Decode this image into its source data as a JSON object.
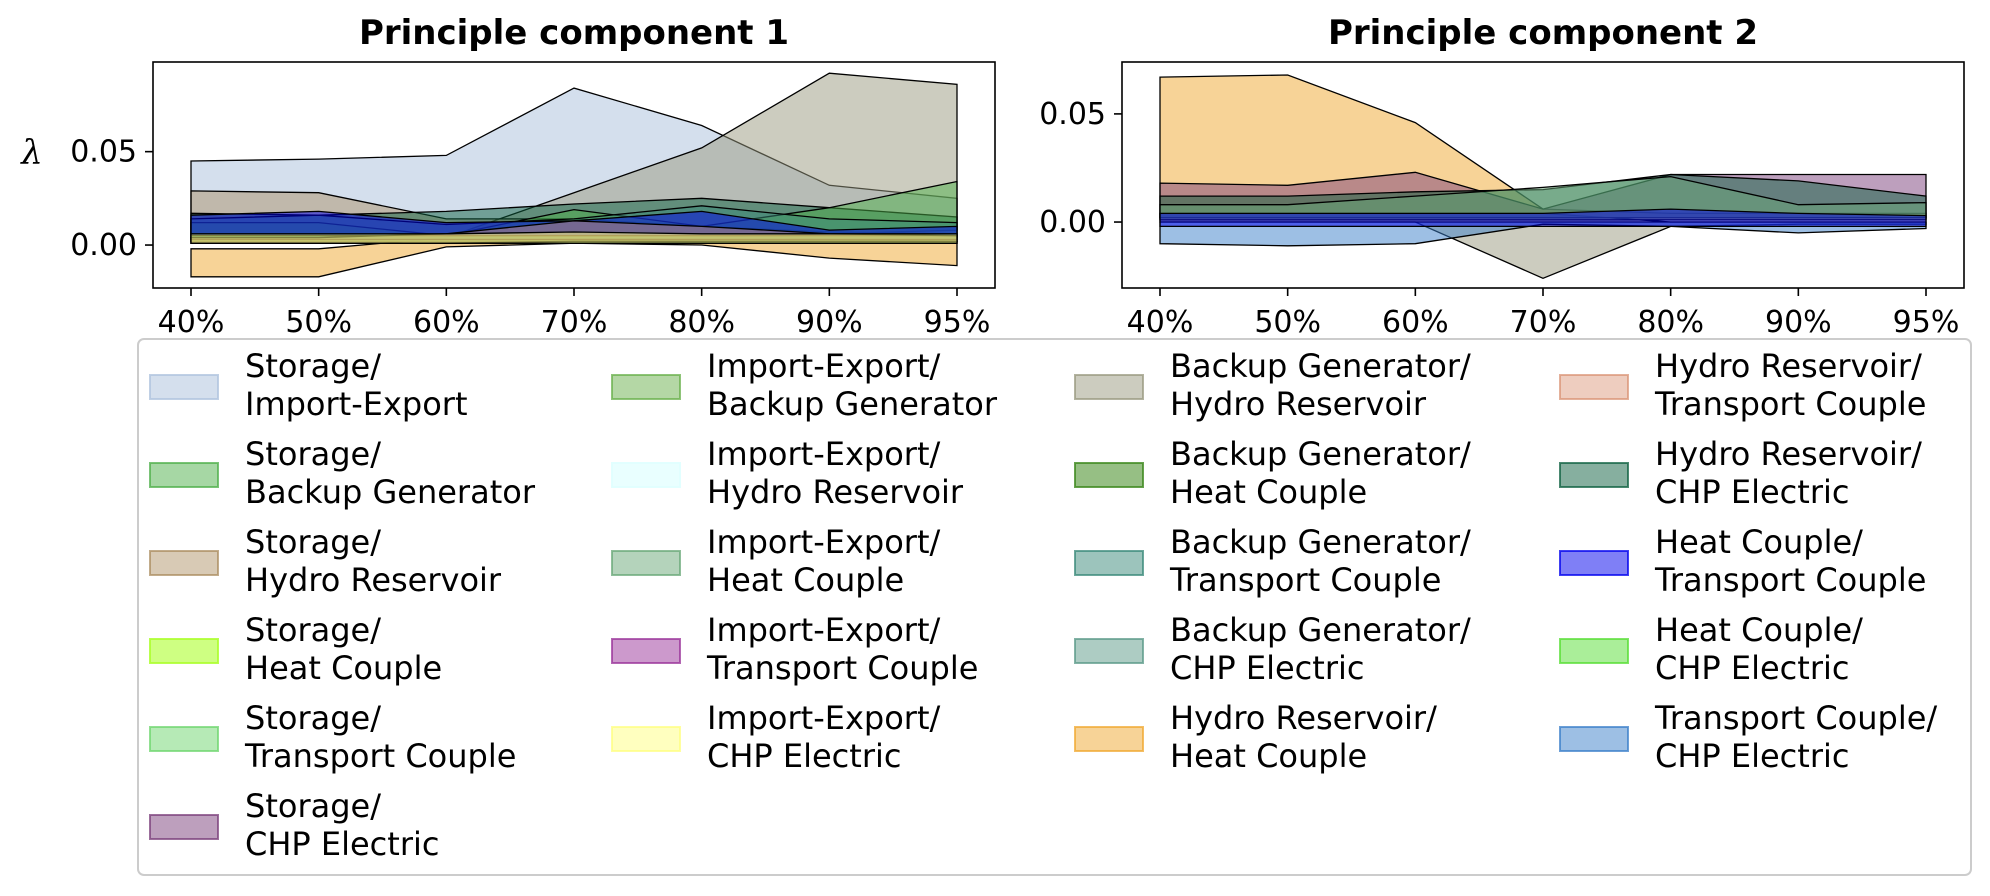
{
  "chart_data": [
    {
      "type": "area",
      "title": "Principle component 1",
      "ylabel": "λ",
      "categories": [
        "40%",
        "50%",
        "60%",
        "70%",
        "80%",
        "90%",
        "95%"
      ],
      "ylim": [
        -0.023,
        0.098
      ],
      "yticks": [
        0.0,
        0.05
      ],
      "ytick_labels": [
        "0.00",
        "0.05"
      ],
      "bands": [
        {
          "series": "Hydro Reservoir/ Heat Couple",
          "upper": [
            -0.002,
            -0.002,
            0.004,
            0.008,
            0.006,
            0.003,
            0.002
          ],
          "lower": [
            -0.017,
            -0.017,
            -0.001,
            0.001,
            0.0,
            -0.007,
            -0.011
          ]
        },
        {
          "series": "Storage/ Import-Export",
          "upper": [
            0.045,
            0.046,
            0.048,
            0.084,
            0.064,
            0.032,
            0.025
          ],
          "lower": [
            0.004,
            0.004,
            0.004,
            0.004,
            0.004,
            0.004,
            0.004
          ]
        },
        {
          "series": "Backup Generator/ Hydro Reservoir",
          "upper": [
            0.004,
            0.004,
            0.004,
            0.028,
            0.052,
            0.092,
            0.086
          ],
          "lower": [
            0.002,
            0.002,
            0.002,
            0.003,
            0.004,
            0.006,
            0.008
          ]
        },
        {
          "series": "Storage/ Hydro Reservoir",
          "upper": [
            0.029,
            0.028,
            0.014,
            0.014,
            0.01,
            0.007,
            0.006
          ],
          "lower": [
            0.001,
            0.001,
            0.001,
            0.001,
            0.001,
            0.001,
            0.001
          ]
        },
        {
          "series": "Hydro Reservoir/ CHP Electric",
          "upper": [
            0.017,
            0.016,
            0.018,
            0.022,
            0.025,
            0.02,
            0.015
          ],
          "lower": [
            0.002,
            0.002,
            0.002,
            0.002,
            0.002,
            0.002,
            0.002
          ]
        },
        {
          "series": "Storage/ Backup Generator",
          "upper": [
            0.012,
            0.012,
            0.005,
            0.019,
            0.01,
            0.02,
            0.034
          ],
          "lower": [
            0.001,
            0.001,
            0.001,
            0.001,
            0.001,
            0.001,
            0.001
          ]
        },
        {
          "series": "Backup Generator/ Transport Couple",
          "upper": [
            0.014,
            0.016,
            0.011,
            0.014,
            0.021,
            0.014,
            0.012
          ],
          "lower": [
            0.003,
            0.003,
            0.003,
            0.003,
            0.003,
            0.003,
            0.003
          ]
        },
        {
          "series": "Heat Couple/ Transport Couple",
          "upper": [
            0.016,
            0.018,
            0.012,
            0.013,
            0.018,
            0.008,
            0.01
          ],
          "lower": [
            0.005,
            0.005,
            0.005,
            0.005,
            0.005,
            0.005,
            0.005
          ]
        },
        {
          "series": "Hydro Reservoir/ Transport Couple",
          "upper": [
            0.004,
            0.004,
            0.006,
            0.013,
            0.01,
            0.006,
            0.005
          ],
          "lower": [
            0.001,
            0.001,
            0.001,
            0.002,
            0.002,
            0.002,
            0.002
          ]
        },
        {
          "series": "Import-Export/ CHP Electric",
          "upper": [
            0.006,
            0.006,
            0.006,
            0.007,
            0.006,
            0.006,
            0.006
          ],
          "lower": [
            0.001,
            0.001,
            0.001,
            0.001,
            0.001,
            0.001,
            0.001
          ]
        }
      ]
    },
    {
      "type": "area",
      "title": "Principle component 2",
      "ylabel": "",
      "categories": [
        "40%",
        "50%",
        "60%",
        "70%",
        "80%",
        "90%",
        "95%"
      ],
      "ylim": [
        -0.0305,
        0.074
      ],
      "yticks": [
        0.0,
        0.05
      ],
      "ytick_labels": [
        "0.00",
        "0.05"
      ],
      "bands": [
        {
          "series": "Hydro Reservoir/ Heat Couple",
          "upper": [
            0.067,
            0.068,
            0.046,
            0.006,
            0.004,
            0.004,
            0.004
          ],
          "lower": [
            0.001,
            0.001,
            0.001,
            0.001,
            0.001,
            0.001,
            0.001
          ]
        },
        {
          "series": "Backup Generator/ Hydro Reservoir",
          "upper": [
            0.004,
            0.004,
            0.004,
            0.004,
            0.0,
            0.0,
            0.0
          ],
          "lower": [
            0.0,
            0.0,
            0.0,
            -0.026,
            -0.002,
            -0.001,
            -0.001
          ]
        },
        {
          "series": "Storage/ CHP Electric",
          "upper": [
            0.018,
            0.017,
            0.023,
            0.006,
            0.022,
            0.022,
            0.022
          ],
          "lower": [
            0.002,
            0.002,
            0.002,
            0.002,
            0.002,
            0.002,
            0.002
          ]
        },
        {
          "series": "Hydro Reservoir/ CHP Electric",
          "upper": [
            0.012,
            0.012,
            0.014,
            0.015,
            0.022,
            0.019,
            0.012
          ],
          "lower": [
            0.002,
            0.002,
            0.002,
            0.002,
            0.002,
            0.002,
            0.002
          ]
        },
        {
          "series": "Import-Export/ Heat Couple",
          "upper": [
            0.008,
            0.008,
            0.012,
            0.016,
            0.021,
            0.008,
            0.009
          ],
          "lower": [
            0.001,
            0.001,
            0.001,
            0.001,
            0.001,
            0.001,
            0.001
          ]
        },
        {
          "series": "Transport Couple/ CHP Electric",
          "upper": [
            0.0,
            0.0,
            0.0,
            0.0,
            0.0,
            0.0,
            0.0
          ],
          "lower": [
            -0.01,
            -0.011,
            -0.01,
            -0.001,
            -0.002,
            -0.005,
            -0.003
          ]
        },
        {
          "series": "Heat Couple/ Transport Couple",
          "upper": [
            0.004,
            0.004,
            0.004,
            0.004,
            0.006,
            0.004,
            0.003
          ],
          "lower": [
            -0.002,
            -0.002,
            -0.002,
            -0.002,
            -0.002,
            -0.002,
            -0.002
          ]
        }
      ]
    }
  ],
  "legend": {
    "items": [
      {
        "line1": "Storage/",
        "line2": "Import-Export",
        "color": "#b0c4de",
        "alpha": 0.55
      },
      {
        "line1": "Storage/",
        "line2": "Backup Generator",
        "color": "#4daf4a",
        "alpha": 0.5
      },
      {
        "line1": "Storage/",
        "line2": "Hydro Reservoir",
        "color": "#a8895a",
        "alpha": 0.45
      },
      {
        "line1": "Storage/",
        "line2": "Heat Couple",
        "color": "#adff2f",
        "alpha": 0.6
      },
      {
        "line1": "Storage/",
        "line2": "Transport Couple",
        "color": "#6ed66e",
        "alpha": 0.5
      },
      {
        "line1": "Storage/",
        "line2": "CHP Electric",
        "color": "#7b3f7b",
        "alpha": 0.5
      },
      {
        "line1": "Import-Export/",
        "line2": "Backup Generator",
        "color": "#6ab04c",
        "alpha": 0.5
      },
      {
        "line1": "Import-Export/",
        "line2": "Hydro Reservoir",
        "color": "#e0ffff",
        "alpha": 0.7
      },
      {
        "line1": "Import-Export/",
        "line2": "Heat Couple",
        "color": "#6aa878",
        "alpha": 0.5
      },
      {
        "line1": "Import-Export/",
        "line2": "Transport Couple",
        "color": "#993399",
        "alpha": 0.5
      },
      {
        "line1": "Import-Export/",
        "line2": "CHP Electric",
        "color": "#ffff80",
        "alpha": 0.5
      },
      {
        "line1": "Backup Generator/",
        "line2": "Hydro Reservoir",
        "color": "#9a9a80",
        "alpha": 0.5
      },
      {
        "line1": "Backup Generator/",
        "line2": "Heat Couple",
        "color": "#3f8a1f",
        "alpha": 0.55
      },
      {
        "line1": "Backup Generator/",
        "line2": "Transport Couple",
        "color": "#3a8a7a",
        "alpha": 0.5
      },
      {
        "line1": "Backup Generator/",
        "line2": "CHP Electric",
        "color": "#5b9a88",
        "alpha": 0.5
      },
      {
        "line1": "Hydro Reservoir/",
        "line2": "Heat Couple",
        "color": "#f0a830",
        "alpha": 0.5
      },
      {
        "line1": "Hydro Reservoir/",
        "line2": "Transport Couple",
        "color": "#d99070",
        "alpha": 0.45
      },
      {
        "line1": "Hydro Reservoir/",
        "line2": "CHP Electric",
        "color": "#0e6040",
        "alpha": 0.5
      },
      {
        "line1": "Heat Couple/",
        "line2": "Transport Couple",
        "color": "#0000ee",
        "alpha": 0.5
      },
      {
        "line1": "Heat Couple/",
        "line2": "CHP Electric",
        "color": "#55dd33",
        "alpha": 0.5
      },
      {
        "line1": "Transport Couple/",
        "line2": "CHP Electric",
        "color": "#3b7fc9",
        "alpha": 0.5
      }
    ]
  }
}
